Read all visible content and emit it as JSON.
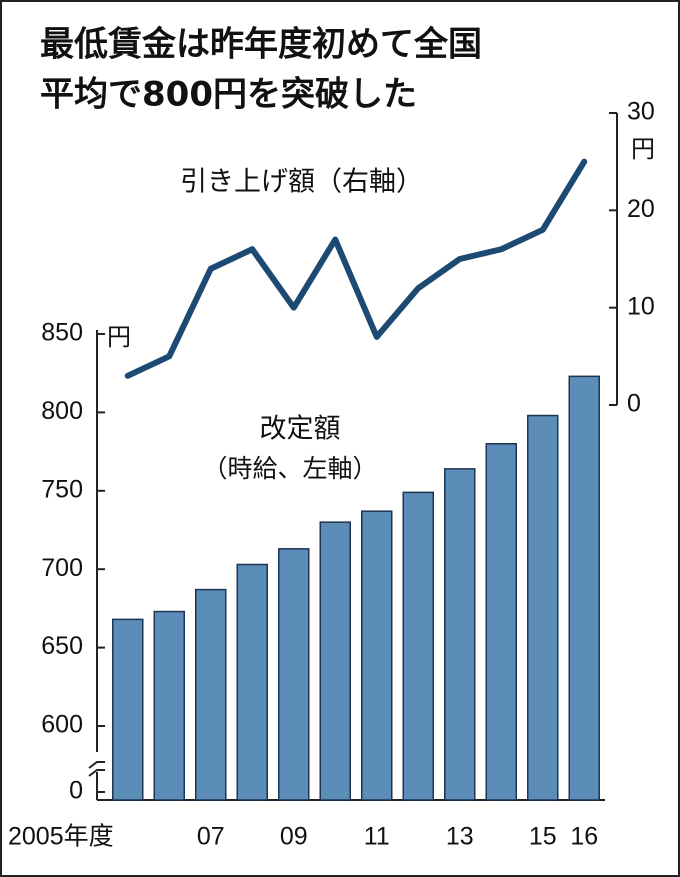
{
  "chart_data": {
    "type": "bar-line",
    "title": [
      "最低賃金は昨年度初めて全国",
      "平均で800円を突破した"
    ],
    "categories": [
      "2005年度",
      null,
      "07",
      null,
      "09",
      null,
      "11",
      null,
      "13",
      null,
      "15",
      "16"
    ],
    "series": [
      {
        "name": "改定額",
        "note": "（時給、左軸）",
        "type": "bar",
        "color": "#5b8db8",
        "values": [
          668,
          673,
          687,
          703,
          713,
          730,
          737,
          749,
          764,
          780,
          798,
          823
        ]
      },
      {
        "name": "引き上げ額（右軸）",
        "type": "line",
        "axis": "y2",
        "color": "#1d4a73",
        "values": [
          3,
          5,
          14,
          16,
          10,
          17,
          7,
          12,
          15,
          16,
          18,
          25
        ]
      }
    ],
    "ylim": [
      0,
      850
    ],
    "yticks": [
      0,
      600,
      650,
      700,
      750,
      800,
      850
    ],
    "y_axis_break": true,
    "y_unit": "円",
    "y2lim": [
      0,
      30
    ],
    "y2ticks": [
      0,
      10,
      20,
      30
    ],
    "y2_unit": "円"
  }
}
